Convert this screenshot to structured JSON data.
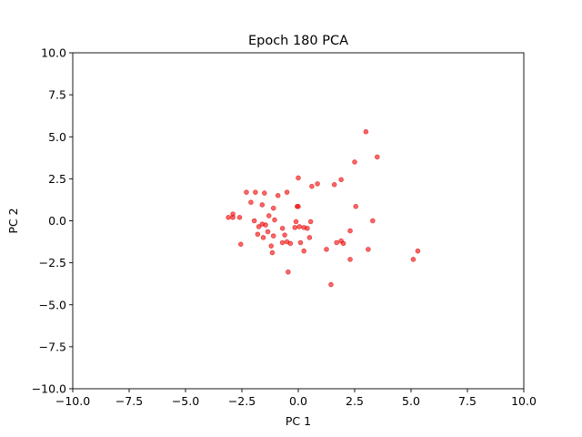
{
  "chart_data": {
    "type": "scatter",
    "title": "Epoch 180 PCA",
    "xlabel": "PC 1",
    "ylabel": "PC 2",
    "xlim": [
      -10,
      10
    ],
    "ylim": [
      -10,
      10
    ],
    "xticks": [
      -10,
      -7.5,
      -5,
      -2.5,
      0,
      2.5,
      5,
      7.5,
      10
    ],
    "yticks": [
      -10,
      -7.5,
      -5,
      -2.5,
      0,
      2.5,
      5,
      7.5,
      10
    ],
    "xtick_labels": [
      "−10.0",
      "−7.5",
      "−5.0",
      "−2.5",
      "0.0",
      "2.5",
      "5.0",
      "7.5",
      "10.0"
    ],
    "ytick_labels": [
      "−10.0",
      "−7.5",
      "−5.0",
      "−2.5",
      "0.0",
      "2.5",
      "5.0",
      "7.5",
      "10.0"
    ],
    "grid": false,
    "marker_color": "#ff0000",
    "marker_edge_color": "#cc0000",
    "marker_alpha": 0.6,
    "series": [
      {
        "points": [
          [
            3.0,
            5.3
          ],
          [
            3.5,
            3.8
          ],
          [
            2.5,
            3.5
          ],
          [
            0.0,
            2.55
          ],
          [
            1.9,
            2.45
          ],
          [
            0.85,
            2.2
          ],
          [
            1.6,
            2.15
          ],
          [
            0.6,
            2.05
          ],
          [
            -2.3,
            1.7
          ],
          [
            -1.9,
            1.7
          ],
          [
            -1.5,
            1.65
          ],
          [
            -0.5,
            1.7
          ],
          [
            -0.9,
            1.5
          ],
          [
            -2.1,
            1.1
          ],
          [
            -1.6,
            0.95
          ],
          [
            -1.1,
            0.75
          ],
          [
            -0.05,
            0.85
          ],
          [
            0.0,
            0.85
          ],
          [
            2.55,
            0.85
          ],
          [
            -3.1,
            0.2
          ],
          [
            -2.9,
            0.4
          ],
          [
            -2.9,
            0.2
          ],
          [
            -2.6,
            0.2
          ],
          [
            -1.3,
            0.3
          ],
          [
            -1.05,
            0.05
          ],
          [
            -1.95,
            0.0
          ],
          [
            -1.6,
            -0.2
          ],
          [
            -1.75,
            -0.35
          ],
          [
            -1.45,
            -0.25
          ],
          [
            -0.7,
            -0.45
          ],
          [
            -0.1,
            -0.05
          ],
          [
            0.05,
            -0.35
          ],
          [
            0.25,
            -0.4
          ],
          [
            0.4,
            -0.45
          ],
          [
            0.55,
            -0.05
          ],
          [
            -0.15,
            -0.4
          ],
          [
            3.3,
            0.0
          ],
          [
            -1.8,
            -0.8
          ],
          [
            -1.55,
            -1.0
          ],
          [
            -1.35,
            -0.65
          ],
          [
            -1.1,
            -0.9
          ],
          [
            -0.7,
            -1.3
          ],
          [
            -0.5,
            -1.25
          ],
          [
            -0.6,
            -0.85
          ],
          [
            -0.35,
            -1.35
          ],
          [
            0.1,
            -1.3
          ],
          [
            0.5,
            -1.0
          ],
          [
            2.3,
            -0.6
          ],
          [
            -2.55,
            -1.4
          ],
          [
            -1.2,
            -1.5
          ],
          [
            -1.15,
            -1.9
          ],
          [
            0.25,
            -1.8
          ],
          [
            1.25,
            -1.7
          ],
          [
            1.7,
            -1.3
          ],
          [
            1.9,
            -1.2
          ],
          [
            2.0,
            -1.35
          ],
          [
            3.1,
            -1.7
          ],
          [
            2.3,
            -2.3
          ],
          [
            5.1,
            -2.3
          ],
          [
            5.3,
            -1.8
          ],
          [
            -0.45,
            -3.05
          ],
          [
            1.45,
            -3.8
          ]
        ]
      }
    ]
  }
}
